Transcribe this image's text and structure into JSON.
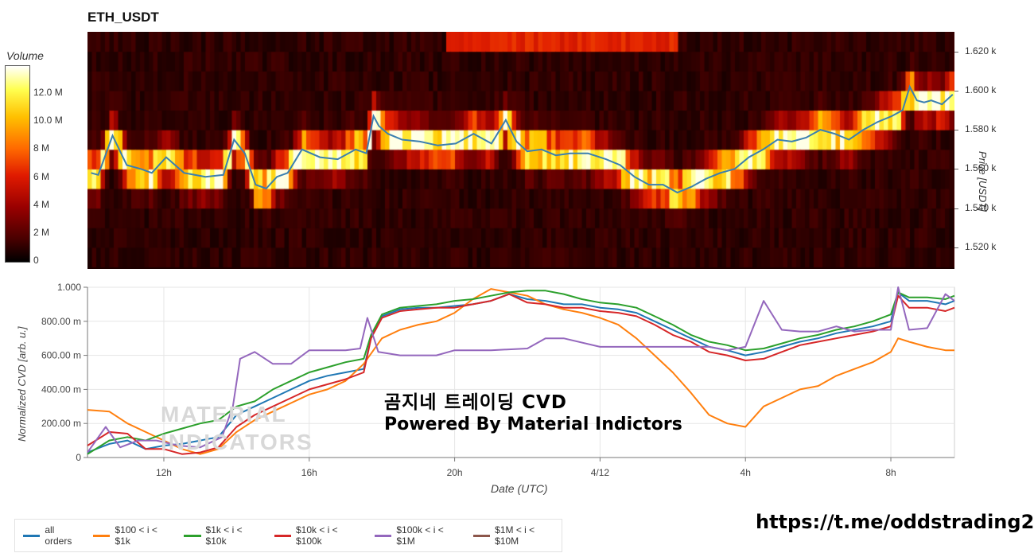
{
  "header": {
    "symbol": "ETH_USDT"
  },
  "colorbar": {
    "title": "Volume",
    "ticks": [
      "12.0 M",
      "10.0 M",
      "8 M",
      "6 M",
      "4 M",
      "2 M",
      "0"
    ],
    "tick_values": [
      12,
      10,
      8,
      6,
      4,
      2,
      0
    ],
    "range_m": [
      0,
      14
    ]
  },
  "overlay": {
    "line1": "곰지네 트레이딩 CVD",
    "line2": "Powered By Material Indictors",
    "watermark_line1": "MATERIAL",
    "watermark_line2": "INDICATORS"
  },
  "footer": {
    "url": "https://t.me/oddstrading2"
  },
  "colors": {
    "all_orders": "#1f77b4",
    "s100_1k": "#ff7f0e",
    "s1k_10k": "#2ca02c",
    "s10k_100k": "#d62728",
    "s100k_1m": "#9467bd",
    "s1m_10m": "#8c564b",
    "price_line": "#3a7fb0"
  },
  "chart_data": [
    {
      "type": "heatmap",
      "title": "ETH_USDT",
      "ylabel": "Price [USDT]",
      "y_ticks": [
        "1.620 k",
        "1.600 k",
        "1.580 k",
        "1.560 k",
        "1.540 k",
        "1.520 k"
      ],
      "y_tick_values": [
        1620,
        1600,
        1580,
        1560,
        1540,
        1520
      ],
      "ylim": [
        1509,
        1630
      ],
      "x_hours_range": [
        9.5,
        33.75
      ],
      "price_bins": [
        1515,
        1525,
        1535,
        1545,
        1555,
        1565,
        1575,
        1585,
        1595,
        1605,
        1615,
        1625
      ],
      "price_series": {
        "hours": [
          9.6,
          9.8,
          10.2,
          10.6,
          11.0,
          11.3,
          11.7,
          12.2,
          12.8,
          13.3,
          13.6,
          13.9,
          14.2,
          14.5,
          14.8,
          15.1,
          15.5,
          16.0,
          16.5,
          17.0,
          17.3,
          17.5,
          17.65,
          17.9,
          18.3,
          18.8,
          19.3,
          19.8,
          20.3,
          20.8,
          21.2,
          21.5,
          21.8,
          22.2,
          22.6,
          23.0,
          23.5,
          24.0,
          24.4,
          24.8,
          25.2,
          25.6,
          26.0,
          26.4,
          26.8,
          27.2,
          27.6,
          28.0,
          28.4,
          28.8,
          29.2,
          29.6,
          30.0,
          30.4,
          30.8,
          31.2,
          31.6,
          32.0,
          32.3,
          32.5,
          32.7,
          32.9,
          33.1,
          33.4,
          33.7
        ],
        "prices": [
          1558,
          1557,
          1577,
          1562,
          1560,
          1558,
          1566,
          1558,
          1556,
          1557,
          1575,
          1568,
          1552,
          1550,
          1556,
          1558,
          1570,
          1566,
          1565,
          1570,
          1568,
          1587,
          1582,
          1578,
          1575,
          1574,
          1572,
          1573,
          1578,
          1573,
          1585,
          1574,
          1569,
          1570,
          1567,
          1568,
          1568,
          1565,
          1562,
          1556,
          1552,
          1552,
          1548,
          1551,
          1555,
          1558,
          1560,
          1566,
          1570,
          1575,
          1574,
          1576,
          1580,
          1578,
          1575,
          1580,
          1584,
          1587,
          1590,
          1602,
          1595,
          1594,
          1595,
          1593,
          1598
        ]
      }
    },
    {
      "type": "line",
      "xlabel": "Date (UTC)",
      "ylabel": "Normalized CVD [arb. u.]",
      "x_ticks": [
        "12h",
        "16h",
        "20h",
        "4/12",
        "4h",
        "8h"
      ],
      "x_tick_hours": [
        12,
        16,
        20,
        24,
        28,
        32
      ],
      "xlim_hours": [
        9.9,
        33.75
      ],
      "y_ticks": [
        "1.000",
        "800.00 m",
        "600.00 m",
        "400.00 m",
        "200.00 m",
        "0"
      ],
      "y_tick_values": [
        1.0,
        0.8,
        0.6,
        0.4,
        0.2,
        0.0
      ],
      "ylim": [
        0,
        1.0
      ],
      "grid": true,
      "legend_position": "bottom-left, outside plot",
      "series": [
        {
          "name": "all orders",
          "color_key": "all_orders",
          "x": [
            9.9,
            10.5,
            11.0,
            11.5,
            12.0,
            12.5,
            13.0,
            13.5,
            14.0,
            14.5,
            15.0,
            15.5,
            16.0,
            16.5,
            17.0,
            17.5,
            17.7,
            18.0,
            18.5,
            19.0,
            19.5,
            20.0,
            20.5,
            21.0,
            21.5,
            22.0,
            22.5,
            23.0,
            23.5,
            24.0,
            24.5,
            25.0,
            25.5,
            26.0,
            26.5,
            27.0,
            27.5,
            28.0,
            28.5,
            29.0,
            29.5,
            30.0,
            30.5,
            31.0,
            31.5,
            32.0,
            32.2,
            32.5,
            33.0,
            33.5,
            33.75
          ],
          "y": [
            0.03,
            0.08,
            0.1,
            0.05,
            0.07,
            0.08,
            0.1,
            0.12,
            0.25,
            0.3,
            0.35,
            0.4,
            0.45,
            0.48,
            0.5,
            0.52,
            0.7,
            0.83,
            0.87,
            0.88,
            0.88,
            0.89,
            0.9,
            0.92,
            0.96,
            0.93,
            0.92,
            0.9,
            0.9,
            0.88,
            0.87,
            0.85,
            0.8,
            0.75,
            0.7,
            0.65,
            0.63,
            0.6,
            0.62,
            0.65,
            0.68,
            0.7,
            0.73,
            0.75,
            0.77,
            0.8,
            0.97,
            0.92,
            0.92,
            0.9,
            0.92
          ]
        },
        {
          "name": "$100 < i < $1k",
          "color_key": "s100_1k",
          "x": [
            9.9,
            10.5,
            11.0,
            11.5,
            12.0,
            12.5,
            13.0,
            13.5,
            14.0,
            14.5,
            15.0,
            15.5,
            16.0,
            16.5,
            17.0,
            17.5,
            18.0,
            18.5,
            19.0,
            19.5,
            20.0,
            20.5,
            21.0,
            21.5,
            22.0,
            22.5,
            23.0,
            23.5,
            24.0,
            24.5,
            25.0,
            25.5,
            26.0,
            26.5,
            27.0,
            27.5,
            28.0,
            28.5,
            29.0,
            29.5,
            30.0,
            30.5,
            31.0,
            31.5,
            32.0,
            32.2,
            32.5,
            33.0,
            33.5,
            33.75
          ],
          "y": [
            0.28,
            0.27,
            0.2,
            0.15,
            0.1,
            0.05,
            0.02,
            0.05,
            0.15,
            0.22,
            0.27,
            0.32,
            0.37,
            0.4,
            0.45,
            0.55,
            0.7,
            0.75,
            0.78,
            0.8,
            0.85,
            0.93,
            0.99,
            0.97,
            0.95,
            0.9,
            0.87,
            0.85,
            0.82,
            0.78,
            0.7,
            0.6,
            0.5,
            0.38,
            0.25,
            0.2,
            0.18,
            0.3,
            0.35,
            0.4,
            0.42,
            0.48,
            0.52,
            0.56,
            0.62,
            0.7,
            0.68,
            0.65,
            0.63,
            0.63
          ]
        },
        {
          "name": "$1k < i < $10k",
          "color_key": "s1k_10k",
          "x": [
            9.9,
            10.5,
            11.0,
            11.5,
            12.0,
            12.5,
            13.0,
            13.5,
            14.0,
            14.5,
            15.0,
            15.5,
            16.0,
            16.5,
            17.0,
            17.5,
            17.7,
            18.0,
            18.5,
            19.0,
            19.5,
            20.0,
            20.5,
            21.0,
            21.5,
            22.0,
            22.5,
            23.0,
            23.5,
            24.0,
            24.5,
            25.0,
            25.5,
            26.0,
            26.5,
            27.0,
            27.5,
            28.0,
            28.5,
            29.0,
            29.5,
            30.0,
            30.5,
            31.0,
            31.5,
            32.0,
            32.2,
            32.5,
            33.0,
            33.5,
            33.75
          ],
          "y": [
            0.02,
            0.1,
            0.12,
            0.1,
            0.14,
            0.17,
            0.2,
            0.22,
            0.3,
            0.33,
            0.4,
            0.45,
            0.5,
            0.53,
            0.56,
            0.58,
            0.72,
            0.84,
            0.88,
            0.89,
            0.9,
            0.92,
            0.93,
            0.95,
            0.97,
            0.98,
            0.98,
            0.96,
            0.93,
            0.91,
            0.9,
            0.88,
            0.83,
            0.78,
            0.72,
            0.68,
            0.66,
            0.63,
            0.64,
            0.67,
            0.7,
            0.72,
            0.75,
            0.77,
            0.8,
            0.84,
            0.97,
            0.94,
            0.94,
            0.93,
            0.95
          ]
        },
        {
          "name": "$10k < i < $100k",
          "color_key": "s10k_100k",
          "x": [
            9.9,
            10.5,
            11.0,
            11.5,
            12.0,
            12.5,
            13.0,
            13.5,
            14.0,
            14.5,
            15.0,
            15.5,
            16.0,
            16.5,
            17.0,
            17.5,
            17.7,
            18.0,
            18.5,
            19.0,
            19.5,
            20.0,
            20.5,
            21.0,
            21.5,
            22.0,
            22.5,
            23.0,
            23.5,
            24.0,
            24.5,
            25.0,
            25.5,
            26.0,
            26.5,
            27.0,
            27.5,
            28.0,
            28.5,
            29.0,
            29.5,
            30.0,
            30.5,
            31.0,
            31.5,
            32.0,
            32.2,
            32.5,
            33.0,
            33.5,
            33.75
          ],
          "y": [
            0.07,
            0.15,
            0.14,
            0.05,
            0.05,
            0.02,
            0.03,
            0.06,
            0.18,
            0.25,
            0.3,
            0.35,
            0.4,
            0.43,
            0.46,
            0.5,
            0.7,
            0.82,
            0.86,
            0.87,
            0.88,
            0.88,
            0.9,
            0.92,
            0.96,
            0.91,
            0.9,
            0.88,
            0.88,
            0.86,
            0.85,
            0.83,
            0.78,
            0.72,
            0.68,
            0.62,
            0.6,
            0.57,
            0.58,
            0.62,
            0.66,
            0.68,
            0.7,
            0.72,
            0.74,
            0.77,
            0.95,
            0.88,
            0.88,
            0.86,
            0.88
          ]
        },
        {
          "name": "$100k < i < $1M",
          "color_key": "s100k_1m",
          "x": [
            9.9,
            10.4,
            10.8,
            11.3,
            11.8,
            12.4,
            13.0,
            13.6,
            13.9,
            14.1,
            14.5,
            15.0,
            15.5,
            16.0,
            16.5,
            17.0,
            17.4,
            17.6,
            17.9,
            18.5,
            19.0,
            19.5,
            20.0,
            21.0,
            22.0,
            22.5,
            23.0,
            24.0,
            25.0,
            26.0,
            26.5,
            27.0,
            27.5,
            28.0,
            28.5,
            29.0,
            29.5,
            30.0,
            30.5,
            31.0,
            31.5,
            32.0,
            32.2,
            32.5,
            33.0,
            33.5,
            33.75
          ],
          "y": [
            0.03,
            0.18,
            0.06,
            0.1,
            0.1,
            0.07,
            0.06,
            0.12,
            0.3,
            0.58,
            0.62,
            0.55,
            0.55,
            0.63,
            0.63,
            0.63,
            0.64,
            0.82,
            0.62,
            0.6,
            0.6,
            0.6,
            0.63,
            0.63,
            0.64,
            0.7,
            0.7,
            0.65,
            0.65,
            0.65,
            0.65,
            0.65,
            0.63,
            0.65,
            0.92,
            0.75,
            0.74,
            0.74,
            0.77,
            0.74,
            0.75,
            0.75,
            1.0,
            0.75,
            0.76,
            0.96,
            0.92
          ]
        },
        {
          "name": "$1M < i < $10M",
          "color_key": "s1m_10m",
          "x": [],
          "y": []
        }
      ]
    }
  ]
}
